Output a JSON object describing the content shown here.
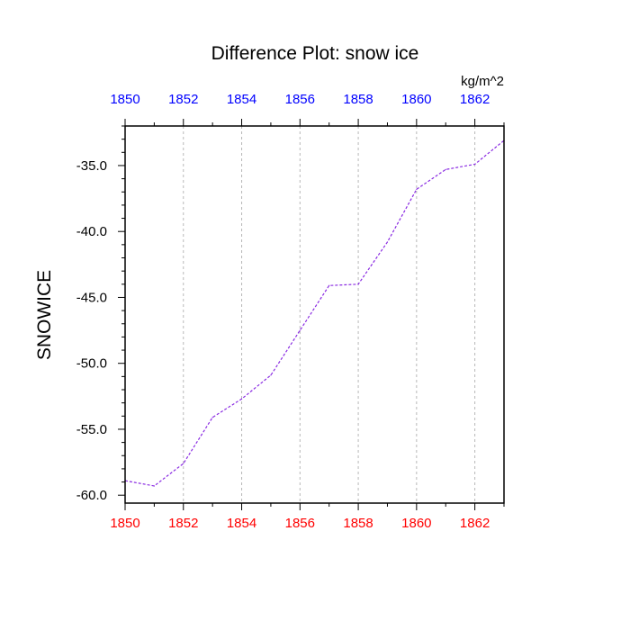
{
  "chart_data": {
    "type": "line",
    "title": "Difference Plot: snow ice",
    "units": "kg/m^2",
    "ylabel": "SNOWICE",
    "xlabel": "",
    "x": [
      1850,
      1851,
      1852,
      1853,
      1854,
      1855,
      1856,
      1857,
      1858,
      1859,
      1860,
      1861,
      1862,
      1863
    ],
    "series": [
      {
        "values": [
          -58.9,
          -59.3,
          -57.6,
          -54.1,
          -52.7,
          -50.9,
          -47.5,
          -44.1,
          -44.0,
          -40.8,
          -36.8,
          -35.3,
          -34.9,
          -33.1
        ]
      }
    ],
    "xlim": [
      1850,
      1863
    ],
    "ylim": [
      -60.6,
      -32.0
    ],
    "x_ticks": [
      1850,
      1852,
      1854,
      1856,
      1858,
      1860,
      1862
    ],
    "x_tick_labels": [
      "1850",
      "1852",
      "1854",
      "1856",
      "1858",
      "1860",
      "1862"
    ],
    "x_minor_ticks": [
      1851,
      1853,
      1855,
      1857,
      1859,
      1861,
      1863
    ],
    "y_ticks": [
      -60,
      -55,
      -50,
      -45,
      -40,
      -35
    ],
    "y_tick_labels": [
      "-60.0",
      "-55.0",
      "-50.0",
      "-45.0",
      "-40.0",
      "-35.0"
    ],
    "y_minor_step": 1,
    "grid": "vertical dashed at major x ticks",
    "colors": {
      "line": "#8a2be2",
      "bottom_tick_labels": "#ff0000",
      "top_tick_labels": "#0000ff",
      "grid": "#b8b8b8",
      "axes": "#000000"
    }
  }
}
